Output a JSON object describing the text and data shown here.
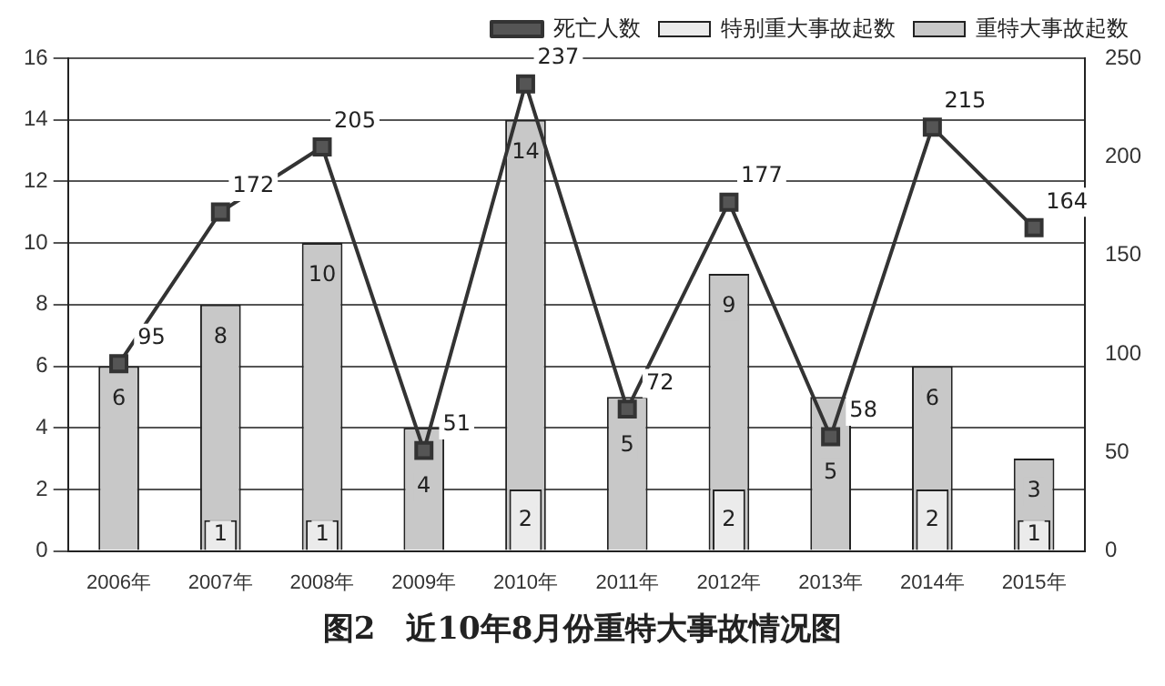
{
  "chart_data": {
    "type": "bar",
    "title": "图2　近10年8月份重特大事故情况图",
    "categories": [
      "2006年",
      "2007年",
      "2008年",
      "2009年",
      "2010年",
      "2011年",
      "2012年",
      "2013年",
      "2014年",
      "2015年"
    ],
    "series": [
      {
        "name": "重特大事故起数",
        "color": "#c8c8c8",
        "values": [
          6,
          8,
          10,
          4,
          14,
          5,
          9,
          5,
          6,
          3
        ],
        "value_labels": [
          "6",
          "8",
          "10",
          "4",
          "14",
          "5",
          "9",
          "5",
          "6",
          "3"
        ]
      },
      {
        "name": "特别重大事故起数",
        "color": "#ebebeb",
        "values": [
          0,
          1,
          1,
          0,
          2,
          0,
          2,
          0,
          2,
          1
        ],
        "value_labels": [
          null,
          "1",
          "1",
          null,
          "2",
          null,
          "2",
          null,
          "2",
          "1"
        ]
      },
      {
        "name": "死亡人数",
        "type": "line",
        "axis": "y2",
        "color": "#333333",
        "values": [
          95,
          172,
          205,
          51,
          237,
          72,
          177,
          58,
          215,
          164
        ],
        "value_labels": [
          "95",
          "172",
          "205",
          "51",
          "237",
          "72",
          "177",
          "58",
          "215",
          "164"
        ]
      }
    ],
    "ylim": [
      0,
      16
    ],
    "yticks": [
      0,
      2,
      4,
      6,
      8,
      10,
      12,
      14,
      16
    ],
    "y2lim": [
      0,
      250
    ],
    "y2ticks": [
      0,
      50,
      100,
      150,
      200,
      250
    ],
    "grid": "y",
    "legend": "top right",
    "marker": "square",
    "line_style": "solid"
  }
}
